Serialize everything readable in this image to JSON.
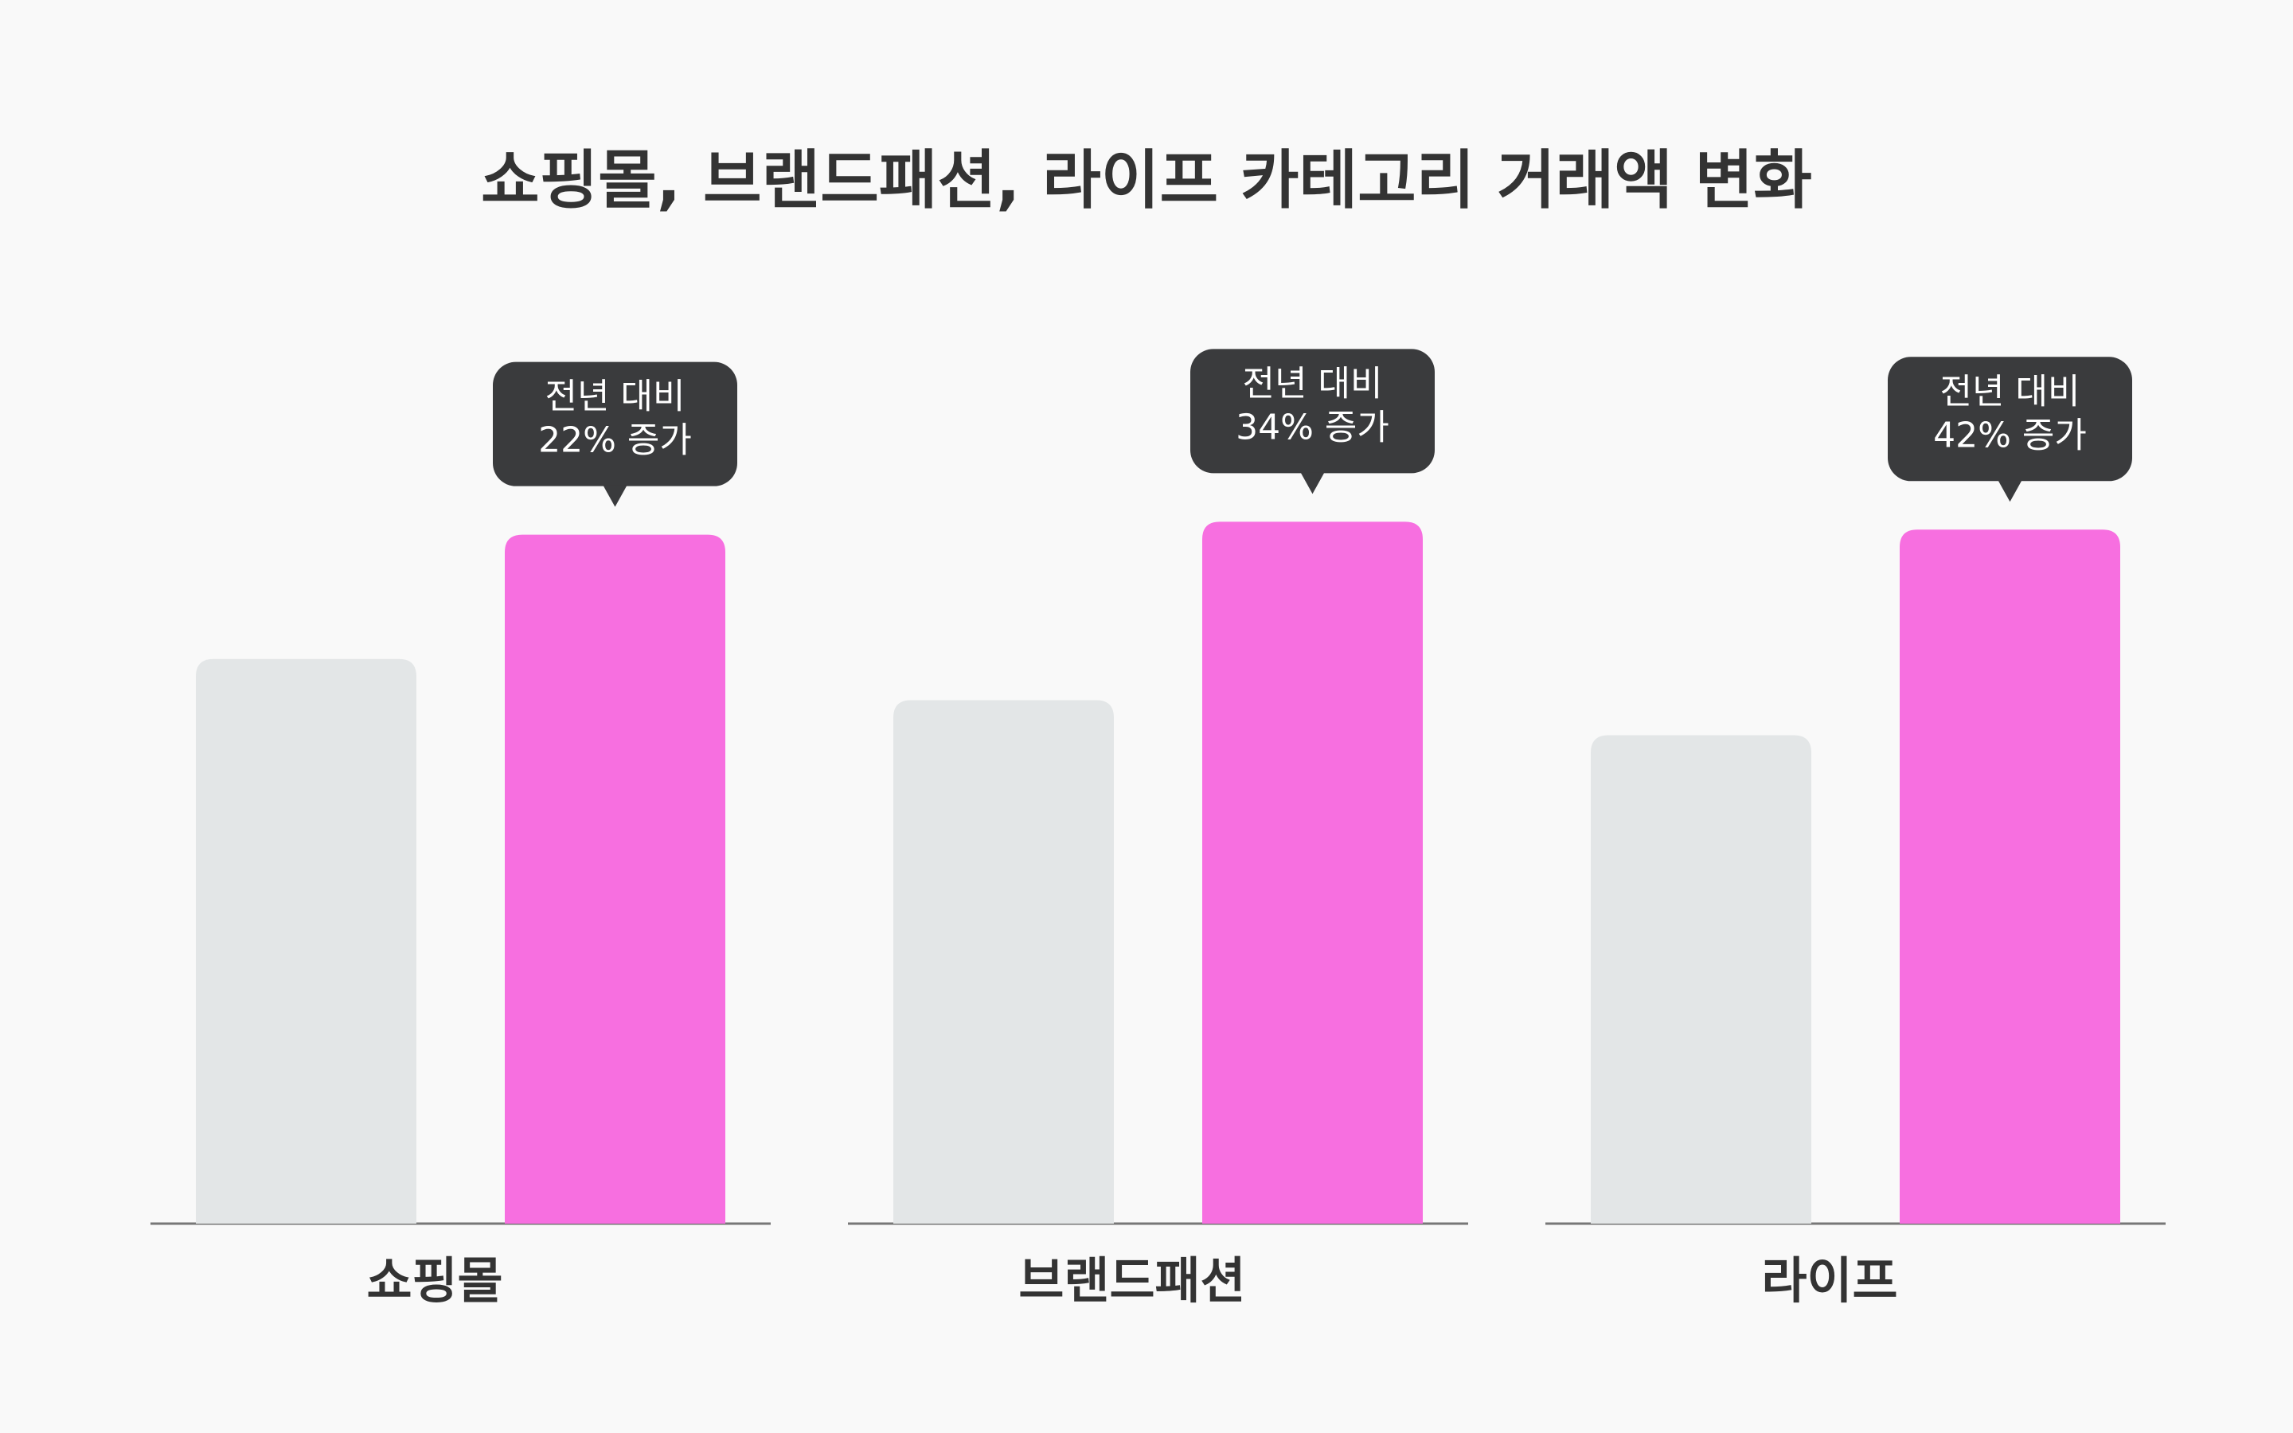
{
  "chart_data": {
    "type": "bar",
    "title": "쇼핑몰, 브랜드패션, 라이프 카테고리 거래액 변화",
    "categories": [
      "쇼핑몰",
      "브랜드패션",
      "라이프"
    ],
    "series": [
      {
        "color": "#e3e6e7",
        "values": [
          100,
          92.7,
          86.5
        ]
      },
      {
        "color": "#f76fe0",
        "values": [
          122,
          124.3,
          122.9
        ]
      }
    ],
    "callouts": [
      [
        "전년 대비",
        "22% 증가"
      ],
      [
        "전년 대비",
        "34% 증가"
      ],
      [
        "전년 대비",
        "42% 증가"
      ]
    ],
    "ylim": [
      0,
      140
    ]
  }
}
